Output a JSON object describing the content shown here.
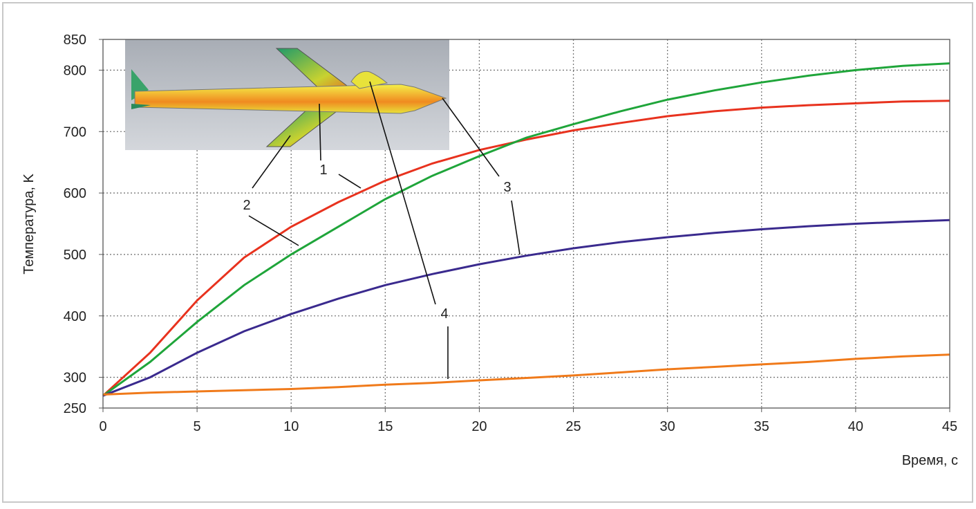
{
  "chart_data": {
    "type": "line",
    "xlabel": "Время, с",
    "ylabel": "Температура, K",
    "x": [
      0,
      2.5,
      5,
      7.5,
      10,
      12.5,
      15,
      17.5,
      20,
      22.5,
      25,
      27.5,
      30,
      32.5,
      35,
      37.5,
      40,
      42.5,
      45
    ],
    "series": [
      {
        "name": "1",
        "color": "#e8321e",
        "values": [
          270,
          340,
          425,
          495,
          545,
          585,
          620,
          648,
          670,
          687,
          702,
          714,
          725,
          733,
          739,
          743,
          746,
          749,
          750
        ]
      },
      {
        "name": "2",
        "color": "#1fa53a",
        "values": [
          270,
          325,
          390,
          450,
          500,
          545,
          590,
          628,
          660,
          690,
          712,
          733,
          752,
          767,
          780,
          791,
          800,
          807,
          811
        ]
      },
      {
        "name": "3",
        "color": "#3a2a8e",
        "values": [
          270,
          300,
          340,
          375,
          403,
          428,
          450,
          468,
          484,
          498,
          510,
          520,
          528,
          535,
          541,
          546,
          550,
          553,
          556
        ]
      },
      {
        "name": "4",
        "color": "#f07a1a",
        "values": [
          272,
          275,
          277,
          279,
          281,
          284,
          288,
          291,
          295,
          299,
          303,
          308,
          313,
          317,
          321,
          325,
          330,
          334,
          337
        ]
      }
    ],
    "xlim": [
      0,
      45
    ],
    "xticks": [
      0,
      5,
      10,
      15,
      20,
      25,
      30,
      35,
      40,
      45
    ],
    "ylim": [
      250,
      850
    ],
    "yticks": [
      250,
      300,
      400,
      500,
      600,
      700,
      800,
      850
    ],
    "grid": true
  }
}
